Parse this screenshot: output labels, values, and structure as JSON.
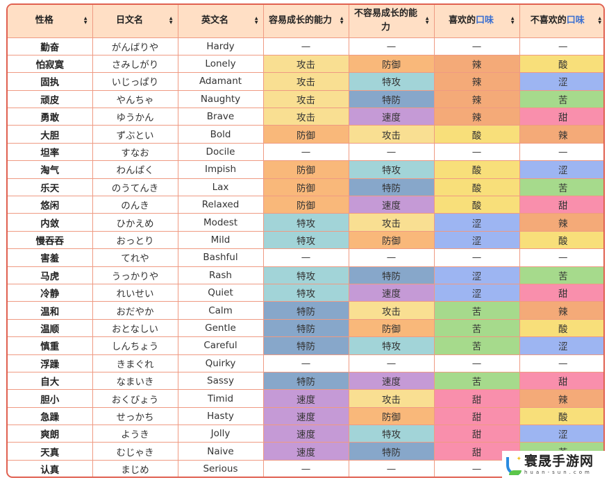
{
  "colors": {
    "header_bg": "#ffdfc5",
    "border": "#ef9a82",
    "outer_border": "#e06050",
    "link_blue": "#3a6fd1",
    "stat": {
      "攻击": "#f9df92",
      "防御": "#f9b87a",
      "特攻": "#a2d4d8",
      "特防": "#87a7ca",
      "速度": "#c59ad6",
      "—": "#ffffff"
    },
    "flavor": {
      "辣": "#f4aa78",
      "酸": "#f8df7a",
      "涩": "#9db5f2",
      "苦": "#a6da8c",
      "甜": "#f98fac",
      "—": "#ffffff"
    }
  },
  "table": {
    "headers": [
      {
        "label": "性格",
        "highlight": ""
      },
      {
        "label": "日文名",
        "highlight": ""
      },
      {
        "label": "英文名",
        "highlight": ""
      },
      {
        "label": "容易成长的能力",
        "highlight": ""
      },
      {
        "label": "不容易成长的能力",
        "highlight": ""
      },
      {
        "label": "喜欢的",
        "highlight": "口味"
      },
      {
        "label": "不喜欢的",
        "highlight": "口味"
      }
    ],
    "sort_icon": "⬍",
    "rows": [
      [
        "勤奋",
        "がんばりや",
        "Hardy",
        "—",
        "—",
        "—",
        "—"
      ],
      [
        "怕寂寞",
        "さみしがり",
        "Lonely",
        "攻击",
        "防御",
        "辣",
        "酸"
      ],
      [
        "固执",
        "いじっぱり",
        "Adamant",
        "攻击",
        "特攻",
        "辣",
        "涩"
      ],
      [
        "顽皮",
        "やんちゃ",
        "Naughty",
        "攻击",
        "特防",
        "辣",
        "苦"
      ],
      [
        "勇敢",
        "ゆうかん",
        "Brave",
        "攻击",
        "速度",
        "辣",
        "甜"
      ],
      [
        "大胆",
        "ずぶとい",
        "Bold",
        "防御",
        "攻击",
        "酸",
        "辣"
      ],
      [
        "坦率",
        "すなお",
        "Docile",
        "—",
        "—",
        "—",
        "—"
      ],
      [
        "淘气",
        "わんぱく",
        "Impish",
        "防御",
        "特攻",
        "酸",
        "涩"
      ],
      [
        "乐天",
        "のうてんき",
        "Lax",
        "防御",
        "特防",
        "酸",
        "苦"
      ],
      [
        "悠闲",
        "のんき",
        "Relaxed",
        "防御",
        "速度",
        "酸",
        "甜"
      ],
      [
        "内敛",
        "ひかえめ",
        "Modest",
        "特攻",
        "攻击",
        "涩",
        "辣"
      ],
      [
        "慢吞吞",
        "おっとり",
        "Mild",
        "特攻",
        "防御",
        "涩",
        "酸"
      ],
      [
        "害羞",
        "てれや",
        "Bashful",
        "—",
        "—",
        "—",
        "—"
      ],
      [
        "马虎",
        "うっかりや",
        "Rash",
        "特攻",
        "特防",
        "涩",
        "苦"
      ],
      [
        "冷静",
        "れいせい",
        "Quiet",
        "特攻",
        "速度",
        "涩",
        "甜"
      ],
      [
        "温和",
        "おだやか",
        "Calm",
        "特防",
        "攻击",
        "苦",
        "辣"
      ],
      [
        "温顺",
        "おとなしい",
        "Gentle",
        "特防",
        "防御",
        "苦",
        "酸"
      ],
      [
        "慎重",
        "しんちょう",
        "Careful",
        "特防",
        "特攻",
        "苦",
        "涩"
      ],
      [
        "浮躁",
        "きまぐれ",
        "Quirky",
        "—",
        "—",
        "—",
        "—"
      ],
      [
        "自大",
        "なまいき",
        "Sassy",
        "特防",
        "速度",
        "苦",
        "甜"
      ],
      [
        "胆小",
        "おくびょう",
        "Timid",
        "速度",
        "攻击",
        "甜",
        "辣"
      ],
      [
        "急躁",
        "せっかち",
        "Hasty",
        "速度",
        "防御",
        "甜",
        "酸"
      ],
      [
        "爽朗",
        "ようき",
        "Jolly",
        "速度",
        "特攻",
        "甜",
        "涩"
      ],
      [
        "天真",
        "むじゃき",
        "Naive",
        "速度",
        "特防",
        "甜",
        "苦"
      ],
      [
        "认真",
        "まじめ",
        "Serious",
        "—",
        "—",
        "—",
        "—"
      ]
    ]
  },
  "watermark": {
    "title": "寰晟手游网",
    "url": "huan-sun.com"
  }
}
